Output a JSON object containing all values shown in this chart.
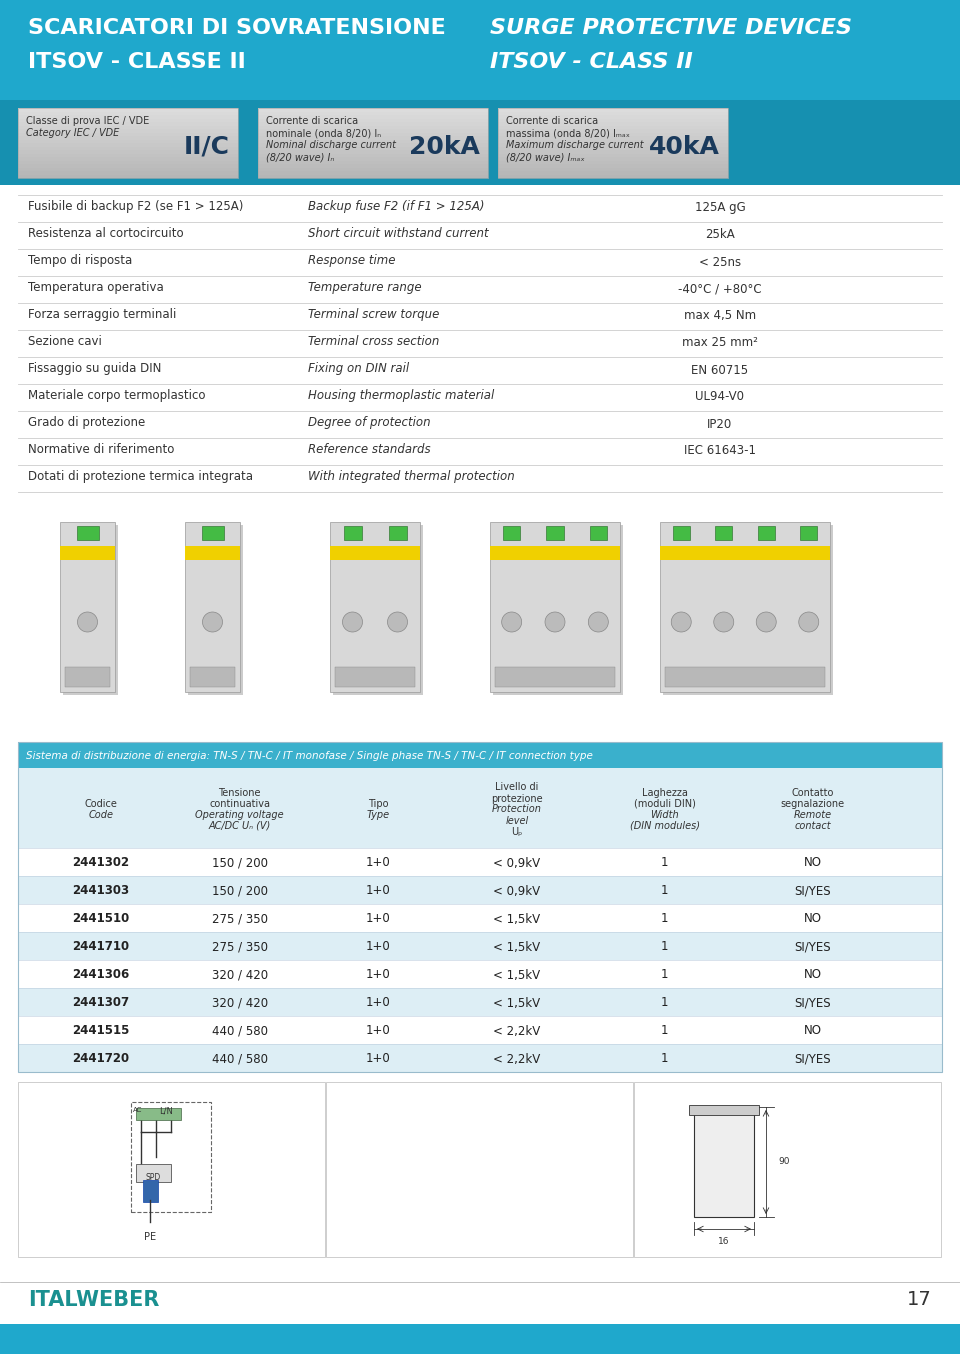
{
  "title_it": "SCARICATORI DI SOVRATENSIONE\nITSOV - CLASSE II",
  "title_en": "SURGE PROTECTIVE DEVICES\nITSOV - CLASS II",
  "header_bg": "#1fa8cc",
  "header_text_color": "#ffffff",
  "badge_bg_light": "#e8eef2",
  "badge_bg_dark": "#c8d4dc",
  "spec_rows": [
    {
      "it": "Fusibile di backup F2 (se F1 > 125A)",
      "en": "Backup fuse F2 (if F1 > 125A)",
      "value": "125A gG"
    },
    {
      "it": "Resistenza al cortocircuito",
      "en": "Short circuit withstand current",
      "value": "25kA"
    },
    {
      "it": "Tempo di risposta",
      "en": "Response time",
      "value": "< 25ns"
    },
    {
      "it": "Temperatura operativa",
      "en": "Temperature range",
      "value": "-40°C / +80°C"
    },
    {
      "it": "Forza serraggio terminali",
      "en": "Terminal screw torque",
      "value": "max 4,5 Nm"
    },
    {
      "it": "Sezione cavi",
      "en": "Terminal cross section",
      "value": "max 25 mm²"
    },
    {
      "it": "Fissaggio su guida DIN",
      "en": "Fixing on DIN rail",
      "value": "EN 60715"
    },
    {
      "it": "Materiale corpo termoplastico",
      "en": "Housing thermoplastic material",
      "value": "UL94-V0"
    },
    {
      "it": "Grado di protezione",
      "en": "Degree of protection",
      "value": "IP20"
    },
    {
      "it": "Normative di riferimento",
      "en": "Reference standards",
      "value": "IEC 61643-1"
    },
    {
      "it": "Dotati di protezione termica integrata",
      "en": "With integrated thermal protection",
      "value": ""
    }
  ],
  "table_header_bg": "#3ab0cc",
  "table_header_text": "#ffffff",
  "table_row_alt": "#ddeef5",
  "table_row_white": "#ffffff",
  "table_system_label": "Sistema di distribuzione di energia: TN-S / TN-C / IT monofase / Single phase TN-S / TN-C / IT connection type",
  "table_rows": [
    [
      "2441302",
      "150 / 200",
      "1+0",
      "< 0,9kV",
      "1",
      "NO"
    ],
    [
      "2441303",
      "150 / 200",
      "1+0",
      "< 0,9kV",
      "1",
      "SI/YES"
    ],
    [
      "2441510",
      "275 / 350",
      "1+0",
      "< 1,5kV",
      "1",
      "NO"
    ],
    [
      "2441710",
      "275 / 350",
      "1+0",
      "< 1,5kV",
      "1",
      "SI/YES"
    ],
    [
      "2441306",
      "320 / 420",
      "1+0",
      "< 1,5kV",
      "1",
      "NO"
    ],
    [
      "2441307",
      "320 / 420",
      "1+0",
      "< 1,5kV",
      "1",
      "SI/YES"
    ],
    [
      "2441515",
      "440 / 580",
      "1+0",
      "< 2,2kV",
      "1",
      "NO"
    ],
    [
      "2441720",
      "440 / 580",
      "1+0",
      "< 2,2kV",
      "1",
      "SI/YES"
    ]
  ],
  "page_number": "17",
  "brand": "ITALWEBER",
  "bg_color": "#ffffff",
  "line_color": "#cccccc",
  "spec_text_color": "#333333",
  "footer_bar_color": "#1fa8cc"
}
